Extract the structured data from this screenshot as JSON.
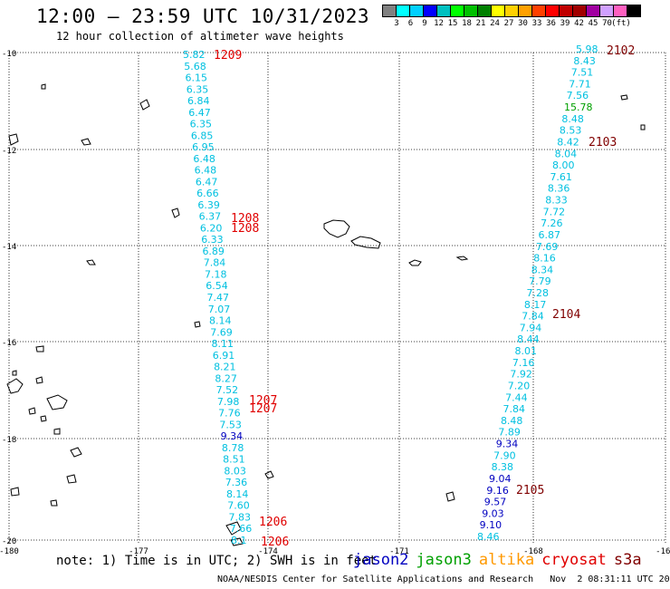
{
  "header": {
    "title": "12:00 – 23:59 UTC 10/31/2023",
    "subtitle": "12 hour collection of altimeter wave heights"
  },
  "scale": {
    "colors": [
      "#808080",
      "#00ffff",
      "#00d0ff",
      "#0000ff",
      "#00c0c0",
      "#00ff00",
      "#00c000",
      "#008000",
      "#ffff00",
      "#ffd000",
      "#ffa000",
      "#ff4000",
      "#ff0000",
      "#c00000",
      "#a00000",
      "#a000a0",
      "#d0a0ff",
      "#ff60c0",
      "#000000"
    ],
    "labels": [
      "3",
      "6",
      "9",
      "12",
      "15",
      "18",
      "21",
      "24",
      "27",
      "30",
      "33",
      "36",
      "39",
      "42",
      "45",
      "70",
      "(ft)"
    ]
  },
  "map": {
    "lat_ticks": [
      "-10",
      "-12",
      "-14",
      "-16",
      "-18",
      "-20"
    ],
    "lon_ticks": [
      "-180",
      "-177",
      "-174",
      "-171",
      "-168",
      "-165"
    ]
  },
  "tracks": {
    "west": [
      {
        "v": "5.82",
        "c": "#00c0e0"
      },
      {
        "v": "5.68",
        "c": "#00c0e0"
      },
      {
        "v": "6.15",
        "c": "#00c0e0"
      },
      {
        "v": "6.35",
        "c": "#00c0e0"
      },
      {
        "v": "6.84",
        "c": "#00c0e0"
      },
      {
        "v": "6.47",
        "c": "#00c0e0"
      },
      {
        "v": "6.35",
        "c": "#00c0e0"
      },
      {
        "v": "6.85",
        "c": "#00c0e0"
      },
      {
        "v": "6.95",
        "c": "#00c0e0"
      },
      {
        "v": "6.48",
        "c": "#00c0e0"
      },
      {
        "v": "6.48",
        "c": "#00c0e0"
      },
      {
        "v": "6.47",
        "c": "#00c0e0"
      },
      {
        "v": "6.66",
        "c": "#00c0e0"
      },
      {
        "v": "6.39",
        "c": "#00c0e0"
      },
      {
        "v": "6.37",
        "c": "#00c0e0"
      },
      {
        "v": "6.20",
        "c": "#00c0e0"
      },
      {
        "v": "6.33",
        "c": "#00c0e0"
      },
      {
        "v": "6.89",
        "c": "#00c0e0"
      },
      {
        "v": "7.84",
        "c": "#00c0e0"
      },
      {
        "v": "7.18",
        "c": "#00c0e0"
      },
      {
        "v": "6.54",
        "c": "#00c0e0"
      },
      {
        "v": "7.47",
        "c": "#00c0e0"
      },
      {
        "v": "7.07",
        "c": "#00c0e0"
      },
      {
        "v": "8.14",
        "c": "#00c0e0"
      },
      {
        "v": "7.69",
        "c": "#00c0e0"
      },
      {
        "v": "8.11",
        "c": "#00c0e0"
      },
      {
        "v": "6.91",
        "c": "#00c0e0"
      },
      {
        "v": "8.21",
        "c": "#00c0e0"
      },
      {
        "v": "8.27",
        "c": "#00c0e0"
      },
      {
        "v": "7.52",
        "c": "#00c0e0"
      },
      {
        "v": "7.98",
        "c": "#00c0e0"
      },
      {
        "v": "7.76",
        "c": "#00c0e0"
      },
      {
        "v": "7.53",
        "c": "#00c0e0"
      },
      {
        "v": "9.34",
        "c": "#0000c0"
      },
      {
        "v": "8.78",
        "c": "#00c0e0"
      },
      {
        "v": "8.51",
        "c": "#00c0e0"
      },
      {
        "v": "8.03",
        "c": "#00c0e0"
      },
      {
        "v": "7.36",
        "c": "#00c0e0"
      },
      {
        "v": "8.14",
        "c": "#00c0e0"
      },
      {
        "v": "7.60",
        "c": "#00c0e0"
      },
      {
        "v": "7.83",
        "c": "#00c0e0"
      },
      {
        "v": "7.66",
        "c": "#00c0e0"
      },
      {
        "v": "8.1",
        "c": "#00c0e0"
      }
    ],
    "east": [
      {
        "v": "5.98",
        "c": "#00c0e0"
      },
      {
        "v": "8.43",
        "c": "#00c0e0"
      },
      {
        "v": "7.51",
        "c": "#00c0e0"
      },
      {
        "v": "7.71",
        "c": "#00c0e0"
      },
      {
        "v": "7.56",
        "c": "#00c0e0"
      },
      {
        "v": "15.78",
        "c": "#00a000"
      },
      {
        "v": "8.48",
        "c": "#00c0e0"
      },
      {
        "v": "8.53",
        "c": "#00c0e0"
      },
      {
        "v": "8.42",
        "c": "#00c0e0"
      },
      {
        "v": "8.04",
        "c": "#00c0e0"
      },
      {
        "v": "8.00",
        "c": "#00c0e0"
      },
      {
        "v": "7.61",
        "c": "#00c0e0"
      },
      {
        "v": "8.36",
        "c": "#00c0e0"
      },
      {
        "v": "8.33",
        "c": "#00c0e0"
      },
      {
        "v": "7.72",
        "c": "#00c0e0"
      },
      {
        "v": "7.26",
        "c": "#00c0e0"
      },
      {
        "v": "6.87",
        "c": "#00c0e0"
      },
      {
        "v": "7.69",
        "c": "#00c0e0"
      },
      {
        "v": "8.16",
        "c": "#00c0e0"
      },
      {
        "v": "8.34",
        "c": "#00c0e0"
      },
      {
        "v": "7.79",
        "c": "#00c0e0"
      },
      {
        "v": "7.28",
        "c": "#00c0e0"
      },
      {
        "v": "8.17",
        "c": "#00c0e0"
      },
      {
        "v": "7.84",
        "c": "#00c0e0"
      },
      {
        "v": "7.94",
        "c": "#00c0e0"
      },
      {
        "v": "8.44",
        "c": "#00c0e0"
      },
      {
        "v": "8.01",
        "c": "#00c0e0"
      },
      {
        "v": "7.16",
        "c": "#00c0e0"
      },
      {
        "v": "7.92",
        "c": "#00c0e0"
      },
      {
        "v": "7.20",
        "c": "#00c0e0"
      },
      {
        "v": "7.44",
        "c": "#00c0e0"
      },
      {
        "v": "7.84",
        "c": "#00c0e0"
      },
      {
        "v": "8.48",
        "c": "#00c0e0"
      },
      {
        "v": "7.89",
        "c": "#00c0e0"
      },
      {
        "v": "9.34",
        "c": "#0000c0"
      },
      {
        "v": "7.90",
        "c": "#00c0e0"
      },
      {
        "v": "8.38",
        "c": "#00c0e0"
      },
      {
        "v": "9.04",
        "c": "#0000c0"
      },
      {
        "v": "9.16",
        "c": "#0000c0"
      },
      {
        "v": "9.57",
        "c": "#0000c0"
      },
      {
        "v": "9.03",
        "c": "#0000c0"
      },
      {
        "v": "9.10",
        "c": "#0000c0"
      },
      {
        "v": "8.46",
        "c": "#00c0e0"
      }
    ]
  },
  "time_labels": {
    "west": [
      {
        "v": "1209",
        "c": "#e00000"
      },
      {
        "v": "1208",
        "c": "#e00000"
      },
      {
        "v": "1208",
        "c": "#e00000"
      },
      {
        "v": "1207",
        "c": "#e00000"
      },
      {
        "v": "1207",
        "c": "#e00000"
      },
      {
        "v": "1206",
        "c": "#e00000"
      },
      {
        "v": "1206",
        "c": "#e00000"
      }
    ],
    "east": [
      {
        "v": "2102",
        "c": "#800000"
      },
      {
        "v": "2103",
        "c": "#800000"
      },
      {
        "v": "2104",
        "c": "#800000"
      },
      {
        "v": "2105",
        "c": "#800000"
      }
    ]
  },
  "footer": {
    "note": "note: 1) Time is in UTC; 2) SWH is in feet",
    "satellites": [
      {
        "name": "jason2",
        "color": "#0000c0"
      },
      {
        "name": "jason3",
        "color": "#00a000"
      },
      {
        "name": "altika",
        "color": "#ff9900"
      },
      {
        "name": "cryosat",
        "color": "#e00000"
      },
      {
        "name": "s3a",
        "color": "#800000"
      }
    ],
    "credit": "NOAA/NESDIS Center for Satellite Applications and Research   Nov  2 08:31:11 UTC 2023"
  }
}
